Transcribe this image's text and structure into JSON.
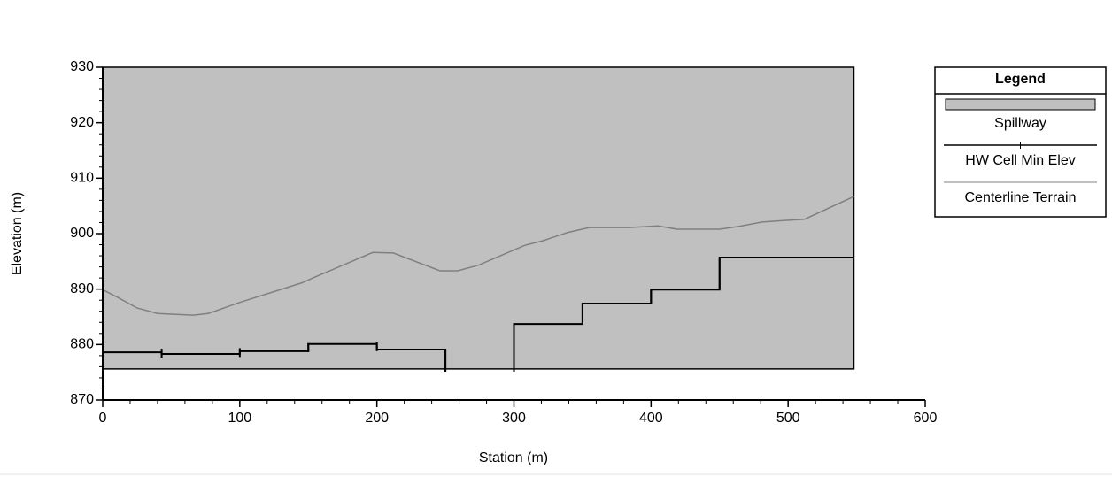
{
  "chart_data": {
    "type": "line",
    "xlabel": "Station (m)",
    "ylabel": "Elevation (m)",
    "xlim": [
      0,
      600
    ],
    "xticks": [
      0,
      100,
      200,
      300,
      400,
      500,
      600
    ],
    "xminor": 20,
    "ylim": [
      870,
      930
    ],
    "yticks": [
      870,
      880,
      890,
      900,
      910,
      920,
      930
    ],
    "yminor": 2,
    "legend": {
      "title": "Legend",
      "position": "right"
    },
    "series": [
      {
        "name": "Spillway",
        "kind": "area",
        "color": "#c0c0c0",
        "x": [
          0,
          548
        ],
        "values": [
          930,
          930
        ],
        "base": 875.6
      },
      {
        "name": "HW Cell Min Elev",
        "kind": "step",
        "color": "#000000",
        "x": [
          0,
          43,
          43,
          100,
          100,
          150,
          150,
          200,
          200,
          250,
          250,
          null,
          300,
          300,
          350,
          350,
          400,
          400,
          450,
          450,
          548
        ],
        "values": [
          878.6,
          878.6,
          878.3,
          878.3,
          878.8,
          878.8,
          880.1,
          880.1,
          879.1,
          879.1,
          875.1,
          null,
          875.1,
          883.7,
          883.7,
          887.4,
          887.4,
          889.9,
          889.9,
          895.7,
          895.7
        ]
      },
      {
        "name": "Centerline Terrain",
        "kind": "line",
        "color": "#808080",
        "x": [
          0,
          11,
          25,
          40,
          66,
          77,
          100,
          145,
          156,
          178,
          197,
          212,
          246,
          259,
          274,
          308,
          321,
          339,
          355,
          384,
          405,
          419,
          450,
          464,
          481,
          512,
          548
        ],
        "values": [
          889.9,
          888.5,
          886.6,
          885.6,
          885.3,
          885.6,
          887.6,
          891.1,
          892.3,
          894.6,
          896.6,
          896.5,
          893.3,
          893.3,
          894.3,
          897.9,
          898.7,
          900.2,
          901.1,
          901.1,
          901.4,
          900.8,
          900.8,
          901.3,
          902.1,
          902.6,
          906.7
        ]
      }
    ]
  }
}
